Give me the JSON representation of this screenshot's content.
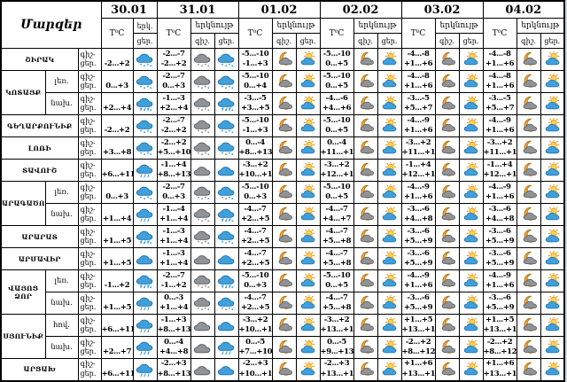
{
  "table": {
    "corner_title": "Մարզեր",
    "temp_header": "T⁰C",
    "sky_header": "երկնույթ",
    "night_abbr": "գիշ.",
    "day_abbr": "ցեր.",
    "sky_abbr_line1": "երկ.",
    "sky_abbr_line2": "ցեր.",
    "row_label_line1": "գիշ-",
    "row_label_line2": "ցեր.",
    "dates": [
      "30.01",
      "31.01",
      "01.02",
      "02.02",
      "03.02",
      "04.02"
    ],
    "icon_colors": {
      "cloud_blue": "#3fa0dc",
      "cloud_grey": "#8f9296",
      "moon": "#f3a63d",
      "sun": "#ffd34d"
    },
    "groups": [
      {
        "lines": [
          "ՇԻՐԱԿ"
        ],
        "rows": [
          {
            "sub": null,
            "d30": {
              "day": "-2...+2",
              "icon": "snow-blue"
            },
            "days": [
              {
                "night": "-2...-7",
                "day": "-2...+2",
                "night_icon": "snow-grey",
                "day_icon": "snow-blue"
              },
              {
                "night": "-5...-10",
                "day": "-1...+3",
                "night_icon": "moon-cloud",
                "day_icon": "sun-cloud"
              },
              {
                "night": "-5...-10",
                "day": "0...+5",
                "night_icon": "moon-cloud",
                "day_icon": "sun-cloud"
              },
              {
                "night": "-4...-8",
                "day": "+1...+6",
                "night_icon": "moon-cloud",
                "day_icon": "sun-cloud"
              },
              {
                "night": "-4...-8",
                "day": "+1...+6",
                "night_icon": "moon-cloud",
                "day_icon": "sun-cloud"
              }
            ]
          }
        ]
      },
      {
        "lines": [
          "ԿՈՏԱՅՔ"
        ],
        "rows": [
          {
            "sub": "լեռ.",
            "d30": {
              "day": "0...+3",
              "icon": "snow-blue"
            },
            "days": [
              {
                "night": "-2...-7",
                "day": "0...+3",
                "night_icon": "snow-grey",
                "day_icon": "snow-blue"
              },
              {
                "night": "-5...-10",
                "day": "0...+4",
                "night_icon": "moon-cloud",
                "day_icon": "sun-cloud"
              },
              {
                "night": "-5...-10",
                "day": "0...+5",
                "night_icon": "moon-cloud",
                "day_icon": "sun-cloud"
              },
              {
                "night": "-4...-8",
                "day": "+1...+6",
                "night_icon": "moon-cloud",
                "day_icon": "sun-cloud"
              },
              {
                "night": "-4...-8",
                "day": "+1...+6",
                "night_icon": "moon-cloud",
                "day_icon": "sun-cloud"
              }
            ]
          },
          {
            "sub": "նախ.",
            "d30": {
              "day": "+2...+4",
              "icon": "sleet-blue"
            },
            "days": [
              {
                "night": "-1...-3",
                "day": "+2...+4",
                "night_icon": "snow-grey",
                "day_icon": "sleet-blue"
              },
              {
                "night": "-3...-5",
                "day": "+3...+5",
                "night_icon": "moon-cloud",
                "day_icon": "sun-cloud"
              },
              {
                "night": "-4...-6",
                "day": "+4...+6",
                "night_icon": "moon-cloud",
                "day_icon": "sun-cloud"
              },
              {
                "night": "-3...-5",
                "day": "+5...+7",
                "night_icon": "moon-cloud",
                "day_icon": "sun-cloud"
              },
              {
                "night": "-3...-5",
                "day": "+5...+7",
                "night_icon": "moon-cloud",
                "day_icon": "sun-cloud"
              }
            ]
          }
        ]
      },
      {
        "lines": [
          "ԳԵՂԱՐՔՈՒՆԻՔ"
        ],
        "rows": [
          {
            "sub": null,
            "d30": {
              "day": "-2...+2",
              "icon": "snow-blue"
            },
            "days": [
              {
                "night": "-2...-7",
                "day": "-2...+2",
                "night_icon": "snow-grey",
                "day_icon": "snow-blue"
              },
              {
                "night": "-5...-10",
                "day": "-1...+3",
                "night_icon": "moon-cloud",
                "day_icon": "sun-cloud"
              },
              {
                "night": "-5...-10",
                "day": "0...+5",
                "night_icon": "moon-cloud",
                "day_icon": "sun-cloud"
              },
              {
                "night": "-4...-9",
                "day": "+1...+6",
                "night_icon": "moon-cloud",
                "day_icon": "sun-cloud"
              },
              {
                "night": "-4...-9",
                "day": "+1...+6",
                "night_icon": "moon-cloud",
                "day_icon": "sun-cloud"
              }
            ]
          }
        ]
      },
      {
        "lines": [
          "ԼՈՌԻ"
        ],
        "rows": [
          {
            "sub": null,
            "d30": {
              "day": "+3...+8",
              "icon": "snow-blue"
            },
            "days": [
              {
                "night": "-2...+2",
                "day": "+5...+10",
                "night_icon": "snow-grey",
                "day_icon": "snow-blue"
              },
              {
                "night": "0...-4",
                "day": "+8...+13",
                "night_icon": "moon-cloud",
                "day_icon": "sun-cloud"
              },
              {
                "night": "0...-4",
                "day": "+11...+16",
                "night_icon": "moon-cloud",
                "day_icon": "sun-cloud"
              },
              {
                "night": "-3...+2",
                "day": "+11...+16",
                "night_icon": "moon-cloud",
                "day_icon": "sun-cloud"
              },
              {
                "night": "-3...+2",
                "day": "+11...+16",
                "night_icon": "moon-cloud",
                "day_icon": "sun-cloud"
              }
            ]
          }
        ]
      },
      {
        "lines": [
          "ՏԱՎՈՒՇ"
        ],
        "rows": [
          {
            "sub": null,
            "d30": {
              "day": "+6...+11",
              "icon": "rain-blue"
            },
            "days": [
              {
                "night": "-1...+4",
                "day": "+8...+13",
                "night_icon": "cloud-grey",
                "day_icon": "cloud-blue"
              },
              {
                "night": "-3...+2",
                "day": "+10...+15",
                "night_icon": "moon-cloud",
                "day_icon": "sun-cloud"
              },
              {
                "night": "-3...+2",
                "day": "+12...+17",
                "night_icon": "moon-cloud",
                "day_icon": "sun-cloud"
              },
              {
                "night": "-1...+4",
                "day": "+12...+17",
                "night_icon": "moon-cloud",
                "day_icon": "sun-cloud"
              },
              {
                "night": "-1...+4",
                "day": "+12...+17",
                "night_icon": "moon-cloud",
                "day_icon": "sun-cloud"
              }
            ]
          }
        ]
      },
      {
        "lines": [
          "ԱՐԱԳԱԾՈՏՆ"
        ],
        "rows": [
          {
            "sub": "լեռ.",
            "d30": {
              "day": "0...+3",
              "icon": "snow-blue"
            },
            "days": [
              {
                "night": "-2...-7",
                "day": "0...+3",
                "night_icon": "snow-grey",
                "day_icon": "snow-blue"
              },
              {
                "night": "-5...-10",
                "day": "0...+3",
                "night_icon": "moon-cloud",
                "day_icon": "sun-cloud"
              },
              {
                "night": "-5...-10",
                "day": "0...+5",
                "night_icon": "moon-cloud",
                "day_icon": "sun-cloud"
              },
              {
                "night": "-4...-9",
                "day": "+1...+6",
                "night_icon": "moon-cloud",
                "day_icon": "sun-cloud"
              },
              {
                "night": "-4...-9",
                "day": "+1...+6",
                "night_icon": "moon-cloud",
                "day_icon": "sun-cloud"
              }
            ]
          },
          {
            "sub": "նախ.",
            "d30": {
              "day": "+1...+4",
              "icon": "rain-blue"
            },
            "days": [
              {
                "night": "-1...-4",
                "day": "+1...+4",
                "night_icon": "snow-grey",
                "day_icon": "sleet-blue"
              },
              {
                "night": "-4...-7",
                "day": "+2...+5",
                "night_icon": "moon-cloud",
                "day_icon": "sun-cloud"
              },
              {
                "night": "-4...-7",
                "day": "+4...+7",
                "night_icon": "moon-cloud",
                "day_icon": "sun-cloud"
              },
              {
                "night": "-3...-6",
                "day": "+4...+8",
                "night_icon": "moon-cloud",
                "day_icon": "sun-cloud"
              },
              {
                "night": "-3...-6",
                "day": "+4...+8",
                "night_icon": "moon-cloud",
                "day_icon": "sun-cloud"
              }
            ]
          }
        ]
      },
      {
        "lines": [
          "ԱՐԱՐԱՏ"
        ],
        "rows": [
          {
            "sub": null,
            "d30": {
              "day": "+1...+5",
              "icon": "sleet-blue"
            },
            "days": [
              {
                "night": "-1...-3",
                "day": "+1...+4",
                "night_icon": "snow-grey",
                "day_icon": "snow-blue"
              },
              {
                "night": "-4...-7",
                "day": "+2...+5",
                "night_icon": "moon-cloud",
                "day_icon": "sun-cloud"
              },
              {
                "night": "-4...-7",
                "day": "+5...+8",
                "night_icon": "moon-cloud",
                "day_icon": "sun-cloud"
              },
              {
                "night": "-3...-6",
                "day": "+5...+9",
                "night_icon": "moon-cloud",
                "day_icon": "sun-cloud"
              },
              {
                "night": "-3...-6",
                "day": "+5...+9",
                "night_icon": "moon-cloud",
                "day_icon": "sun-cloud"
              }
            ]
          }
        ]
      },
      {
        "lines": [
          "ԱՐՄԱՎԻՐ"
        ],
        "rows": [
          {
            "sub": null,
            "d30": {
              "day": "+1...+5",
              "icon": "cloud-blue"
            },
            "days": [
              {
                "night": "-1...-3",
                "day": "+1...+4",
                "night_icon": "cloud-grey",
                "day_icon": "cloud-blue"
              },
              {
                "night": "-4...-7",
                "day": "+2...+5",
                "night_icon": "moon-cloud",
                "day_icon": "sun-cloud"
              },
              {
                "night": "-4...-7",
                "day": "+5...+8",
                "night_icon": "moon-cloud",
                "day_icon": "sun-cloud"
              },
              {
                "night": "-3...-6",
                "day": "+5...+9",
                "night_icon": "moon-cloud",
                "day_icon": "sun-cloud"
              },
              {
                "night": "-3...-6",
                "day": "+5...+9",
                "night_icon": "moon-cloud",
                "day_icon": "sun-cloud"
              }
            ]
          }
        ]
      },
      {
        "lines": [
          "ՎԱՅՈՑ",
          "ՁՈՐ"
        ],
        "rows": [
          {
            "sub": "լեռ.",
            "d30": {
              "day": "-1...+2",
              "icon": "sleet-blue"
            },
            "days": [
              {
                "night": "-2...-7",
                "day": "-1...+2",
                "night_icon": "snow-grey",
                "day_icon": "sleet-blue"
              },
              {
                "night": "-5...-10",
                "day": "0...+3",
                "night_icon": "moon-cloud",
                "day_icon": "sun-cloud"
              },
              {
                "night": "-5...-10",
                "day": "0...+5",
                "night_icon": "moon-cloud",
                "day_icon": "sun-cloud"
              },
              {
                "night": "-4...-9",
                "day": "+1...+6",
                "night_icon": "moon-cloud",
                "day_icon": "sun-cloud"
              },
              {
                "night": "-4...-9",
                "day": "+1...+6",
                "night_icon": "moon-cloud",
                "day_icon": "sun-cloud"
              }
            ]
          },
          {
            "sub": "նախ.",
            "d30": {
              "day": "+1...+5",
              "icon": "rain-blue"
            },
            "days": [
              {
                "night": "0...-3",
                "day": "+1...+4",
                "night_icon": "snow-grey",
                "day_icon": "snow-blue"
              },
              {
                "night": "-4...-7",
                "day": "+2...+5",
                "night_icon": "moon-cloud",
                "day_icon": "sun-cloud"
              },
              {
                "night": "-4...-7",
                "day": "+5...+8",
                "night_icon": "moon-cloud",
                "day_icon": "sun-cloud"
              },
              {
                "night": "-3...-6",
                "day": "+5...+9",
                "night_icon": "moon-cloud",
                "day_icon": "sun-cloud"
              },
              {
                "night": "-3...-6",
                "day": "+5...+9",
                "night_icon": "moon-cloud",
                "day_icon": "sun-cloud"
              }
            ]
          }
        ]
      },
      {
        "lines": [
          "ՍՅՈՒՆԻՔ"
        ],
        "rows": [
          {
            "sub": "հով.",
            "d30": {
              "day": "+6...+11",
              "icon": "rain-blue"
            },
            "days": [
              {
                "night": "-1...+3",
                "day": "+8...+13",
                "night_icon": "cloud-grey",
                "day_icon": "cloud-blue"
              },
              {
                "night": "-3...+2",
                "day": "+10...+15",
                "night_icon": "moon-cloud",
                "day_icon": "sun-cloud"
              },
              {
                "night": "-3...+2",
                "day": "+13...+18",
                "night_icon": "moon-cloud",
                "day_icon": "sun-cloud"
              },
              {
                "night": "+1...+5",
                "day": "+13...+18",
                "night_icon": "moon-cloud",
                "day_icon": "sun-cloud"
              },
              {
                "night": "+1...+5",
                "day": "+13...+18",
                "night_icon": "moon-cloud",
                "day_icon": "sun-cloud"
              }
            ]
          },
          {
            "sub": "նախ.",
            "d30": {
              "day": "+2...+7",
              "icon": "rain-blue"
            },
            "days": [
              {
                "night": "0...-4",
                "day": "+4...+8",
                "night_icon": "cloud-grey",
                "day_icon": "rain-blue"
              },
              {
                "night": "0...-5",
                "day": "+7...+10",
                "night_icon": "moon-cloud",
                "day_icon": "sun-cloud"
              },
              {
                "night": "0...-5",
                "day": "+9...+13",
                "night_icon": "moon-cloud",
                "day_icon": "sun-cloud"
              },
              {
                "night": "-2...+2",
                "day": "+8...+12",
                "night_icon": "moon-cloud",
                "day_icon": "sun-cloud"
              },
              {
                "night": "-2...+2",
                "day": "+8...+12",
                "night_icon": "moon-cloud",
                "day_icon": "sun-cloud"
              }
            ]
          }
        ]
      },
      {
        "lines": [
          "ԱՐՑԱԽ"
        ],
        "rows": [
          {
            "sub": null,
            "d30": {
              "day": "+6...+11",
              "icon": "rain-blue"
            },
            "days": [
              {
                "night": "-2...+3",
                "day": "+8...+13",
                "night_icon": "cloud-grey",
                "day_icon": "cloud-blue"
              },
              {
                "night": "-2...+3",
                "day": "+10...+15",
                "night_icon": "moon-cloud",
                "day_icon": "sun-cloud"
              },
              {
                "night": "-2...+3",
                "day": "+13...+18",
                "night_icon": "moon-cloud",
                "day_icon": "sun-cloud"
              },
              {
                "night": "+1...+6",
                "day": "+13...+18",
                "night_icon": "moon-cloud",
                "day_icon": "sun-cloud"
              },
              {
                "night": "+1...+6",
                "day": "+13...+18",
                "night_icon": "moon-cloud",
                "day_icon": "sun-cloud"
              }
            ]
          }
        ]
      }
    ]
  }
}
